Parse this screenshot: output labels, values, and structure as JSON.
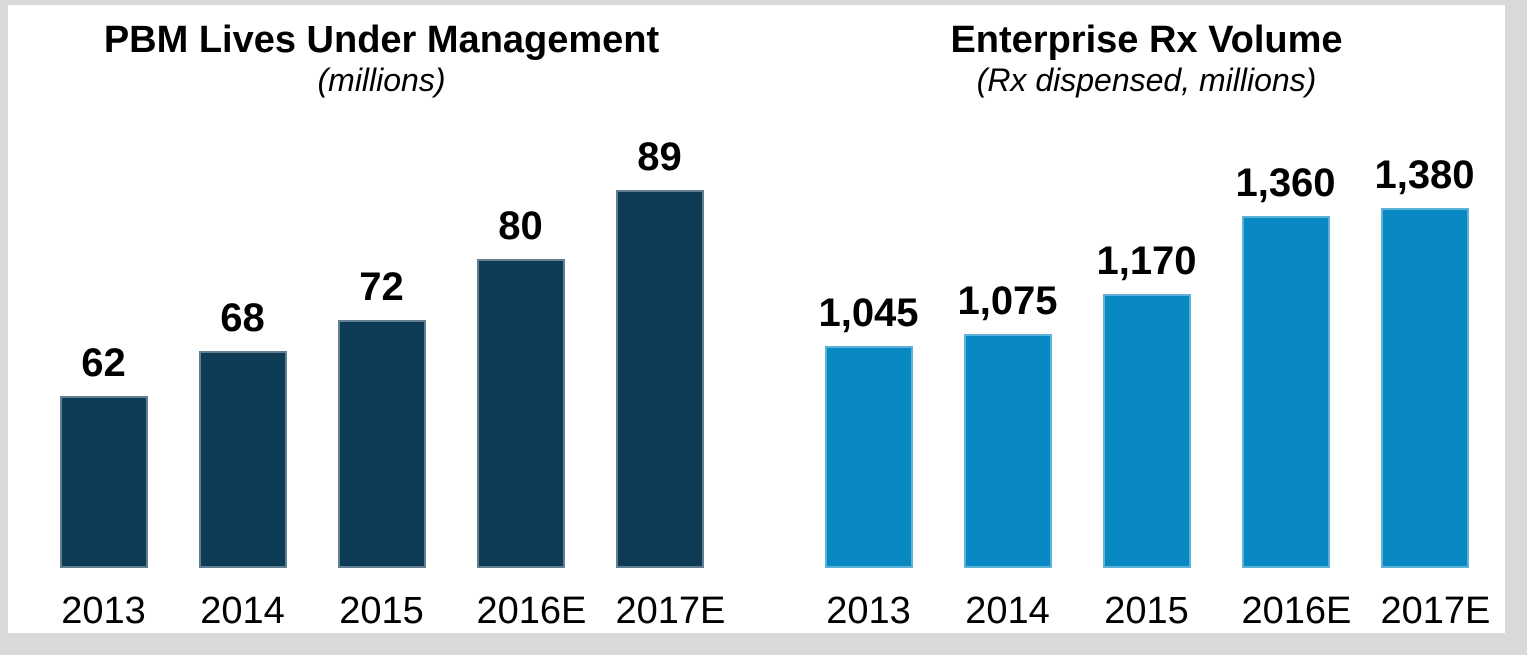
{
  "page": {
    "background_color": "#ffffff",
    "frame_color": "#d9d9d9",
    "text_color": "#000000"
  },
  "chart_data": [
    {
      "type": "bar",
      "title": "PBM Lives Under Management",
      "subtitle": "(millions)",
      "categories": [
        "2013",
        "2014",
        "2015",
        "2016E",
        "2017E"
      ],
      "values": [
        62,
        68,
        72,
        80,
        89
      ],
      "value_labels": [
        "62",
        "68",
        "72",
        "80",
        "89"
      ],
      "bar_color": "#0e3c57",
      "xlabel": "",
      "ylabel": "",
      "ylim": [
        39.5,
        101.1
      ],
      "grid": false,
      "legend": "none",
      "axis_lines": false,
      "data_labels_position": "above-bar"
    },
    {
      "type": "bar",
      "title": "Enterprise Rx Volume",
      "subtitle": "(Rx dispensed, millions)",
      "categories": [
        "2013",
        "2014",
        "2015",
        "2016E",
        "2017E"
      ],
      "values": [
        1045,
        1075,
        1170,
        1360,
        1380
      ],
      "value_labels": [
        "1,045",
        "1,075",
        "1,170",
        "1,360",
        "1,380"
      ],
      "bar_color": "#0889c4",
      "xlabel": "",
      "ylabel": "",
      "ylim": [
        506,
        1647
      ],
      "grid": false,
      "legend": "none",
      "axis_lines": false,
      "data_labels_position": "above-bar"
    }
  ]
}
